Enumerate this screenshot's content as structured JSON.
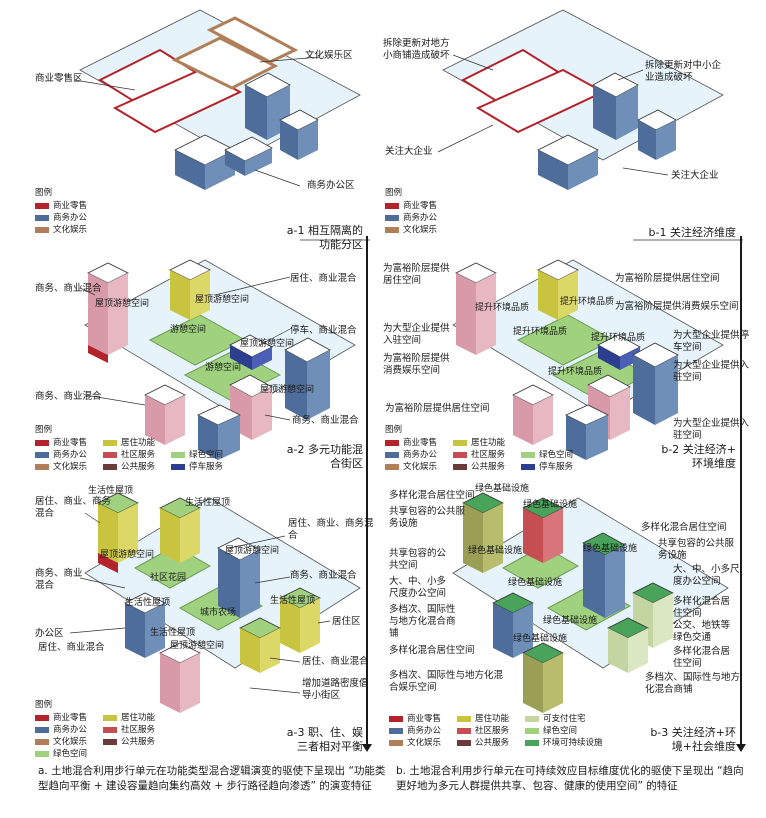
{
  "legend_title": "图例",
  "legend_items": {
    "commercial": "商业零售",
    "office": "商务办公",
    "culture": "文化娱乐",
    "residential": "居住功能",
    "community": "社区服务",
    "public": "公共服务",
    "green": "绿色空间",
    "parking": "停车服务",
    "mobility": "可支付住宅",
    "transport": "环境可持续设施"
  },
  "colors": {
    "commercial": "#b3232b",
    "office": "#4e6d9a",
    "culture": "#b07f5a",
    "residential": "#c9c43f",
    "community": "#c44e52",
    "public": "#6d3a3a",
    "green": "#9fd17f",
    "parking": "#2b3e8f",
    "mobility": "#c3d6a1",
    "transport": "#4aa35a"
  },
  "a1": {
    "labels": [
      "商业零售区",
      "文化娱乐区",
      "商务办公区"
    ],
    "step": [
      "a-1 相互隔离的",
      "功能分区"
    ]
  },
  "a2": {
    "labels": [
      "商务、商业混合",
      "居住、商业混合",
      "停车、商业混合",
      "商务、商业混合",
      "商务、商业混合"
    ],
    "inner": [
      "屋顶游憩空间",
      "屋顶游憩空间",
      "游憩空间",
      "屋顶游憩空间",
      "游憩空间",
      "屋顶游憩空间"
    ],
    "step": [
      "a-2 多元功能混",
      "合街区"
    ]
  },
  "a3": {
    "labels": [
      "居住、商业、商务混合",
      "商务、商业混合",
      "办公区",
      "居住、商业、商务混合",
      "商务、商业混合",
      "居住区",
      "居住、商业混合",
      "增加道路密度倡导小街区"
    ],
    "inner": [
      "生活性屋顶",
      "生活性屋顶",
      "屋顶游憩空间",
      "社区花园",
      "屋顶游憩空间",
      "生活性屋顶",
      "生活性屋顶",
      "城市农场",
      "屋顶游憩空间",
      "生活性屋顶"
    ],
    "step": [
      "a-3 职、住、娱",
      "三者相对平衡"
    ]
  },
  "b1": {
    "labels": [
      "拆除更新对地方小商铺造成破坏",
      "拆除更新对中小企业造成破坏",
      "关注大企业",
      "关注大企业"
    ],
    "step": [
      "b-1 关注经济维度"
    ]
  },
  "b2": {
    "labels": [
      "为富裕阶层提供居住空间",
      "为大型企业提供入驻空间",
      "为富裕阶层提供消费娱乐空间",
      "为富裕阶层提供居住空间",
      "为富裕阶层提供居住空间",
      "为富裕阶层提供消费娱乐空间",
      "为大型企业提供停车空间",
      "为大型企业提供入驻空间",
      "为大型企业提供入驻空间"
    ],
    "inner": [
      "提升环境品质",
      "提升环境品质",
      "提升环境品质",
      "提升环境品质",
      "提升环境品质"
    ],
    "step": [
      "b-2 关注经济+",
      "环境维度"
    ]
  },
  "b3": {
    "labels": [
      "多样化混合居住空间",
      "共享包容的公共服务设施",
      "共享包容的公共空间",
      "大、中、小多尺度办公空间",
      "多档次、国际性与地方化混合商铺",
      "多样化混合居住空间",
      "多档次、国际性与地方化混合娱乐空间",
      "多样化混合居住空间",
      "共享包容的公共服务设施",
      "大、中、小多尺度办公空间",
      "多样化混合居住空间",
      "公交、地铁等绿色交通",
      "多样化混合居住空间",
      "多档次、国际性与地方化混合商铺"
    ],
    "inner": [
      "绿色基础设施",
      "绿色基础设施",
      "绿色基础设施",
      "绿色基础设施",
      "绿色基础设施",
      "绿色基础设施",
      "绿色基础设施"
    ],
    "step": [
      "b-3 关注经济+环",
      "境+社会维度"
    ]
  },
  "caption_a": "a. 土地混合利用步行单元在功能类型混合逻辑演变的驱使下呈现出 “功能类型趋向平衡 + 建设容量趋向集约高效 + 步行路径趋向渗透” 的演变特征",
  "caption_b": "b. 土地混合利用步行单元在可持续效应目标维度优化的驱使下呈现出 “趋向更好地为多元人群提供共享、包容、健康的使用空间” 的特征"
}
